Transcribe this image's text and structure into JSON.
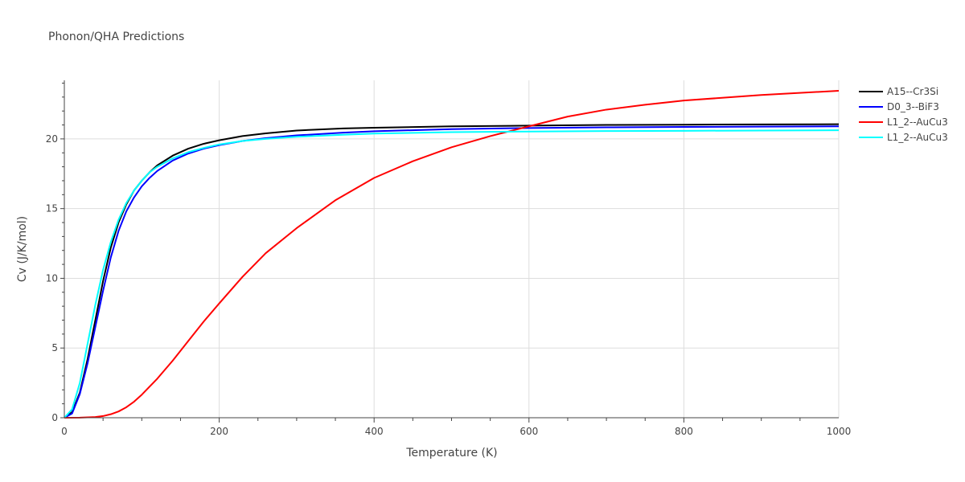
{
  "chart_data": {
    "type": "line",
    "title": "Phonon/QHA Predictions",
    "xlabel": "Temperature (K)",
    "ylabel": "Cv (J/K/mol)",
    "xlim": [
      0,
      1000
    ],
    "ylim": [
      0,
      24.2
    ],
    "xticks": [
      0,
      200,
      400,
      600,
      800,
      1000
    ],
    "yticks": [
      0,
      5,
      10,
      15,
      20
    ],
    "grid": true,
    "legend_position": "top-right",
    "series": [
      {
        "name": "A15--Cr3Si",
        "color": "#000000",
        "x": [
          0,
          10,
          20,
          30,
          40,
          50,
          60,
          70,
          80,
          90,
          100,
          110,
          120,
          140,
          160,
          180,
          200,
          230,
          260,
          300,
          360,
          400,
          500,
          600,
          700,
          800,
          900,
          1000
        ],
        "y": [
          0,
          0.4,
          1.8,
          4.2,
          7.0,
          9.8,
          12.2,
          14.0,
          15.3,
          16.3,
          17.0,
          17.6,
          18.1,
          18.8,
          19.3,
          19.65,
          19.9,
          20.2,
          20.4,
          20.6,
          20.75,
          20.8,
          20.9,
          20.95,
          21.0,
          21.02,
          21.04,
          21.05
        ]
      },
      {
        "name": "D0_3--BiF3",
        "color": "#0000ff",
        "x": [
          0,
          10,
          20,
          30,
          40,
          50,
          60,
          70,
          80,
          90,
          100,
          110,
          120,
          140,
          160,
          180,
          200,
          230,
          260,
          300,
          360,
          400,
          500,
          600,
          700,
          800,
          900,
          1000
        ],
        "y": [
          0,
          0.3,
          1.7,
          3.9,
          6.5,
          9.1,
          11.5,
          13.4,
          14.8,
          15.8,
          16.6,
          17.2,
          17.7,
          18.45,
          18.95,
          19.3,
          19.55,
          19.85,
          20.05,
          20.25,
          20.45,
          20.55,
          20.7,
          20.78,
          20.83,
          20.86,
          20.88,
          20.9
        ]
      },
      {
        "name": "L1_2--AuCu3",
        "color": "#ff0000",
        "x": [
          0,
          20,
          40,
          50,
          60,
          70,
          80,
          90,
          100,
          120,
          140,
          160,
          180,
          200,
          230,
          260,
          300,
          350,
          400,
          450,
          500,
          550,
          600,
          650,
          700,
          750,
          800,
          900,
          1000
        ],
        "y": [
          0,
          0.01,
          0.05,
          0.12,
          0.25,
          0.45,
          0.75,
          1.15,
          1.65,
          2.8,
          4.1,
          5.5,
          6.9,
          8.2,
          10.1,
          11.8,
          13.6,
          15.6,
          17.2,
          18.4,
          19.4,
          20.2,
          20.9,
          21.6,
          22.1,
          22.45,
          22.75,
          23.15,
          23.45
        ]
      },
      {
        "name": "L1_2--AuCu3",
        "color": "#00ffff",
        "x": [
          0,
          10,
          20,
          30,
          40,
          50,
          60,
          70,
          80,
          90,
          100,
          110,
          120,
          140,
          160,
          180,
          200,
          230,
          260,
          300,
          360,
          400,
          500,
          600,
          700,
          800,
          900,
          1000
        ],
        "y": [
          0,
          0.6,
          2.5,
          5.3,
          8.1,
          10.6,
          12.6,
          14.2,
          15.4,
          16.3,
          17.0,
          17.6,
          18.0,
          18.6,
          19.05,
          19.35,
          19.6,
          19.85,
          20.0,
          20.15,
          20.3,
          20.38,
          20.48,
          20.53,
          20.56,
          20.58,
          20.6,
          20.62
        ]
      }
    ]
  }
}
